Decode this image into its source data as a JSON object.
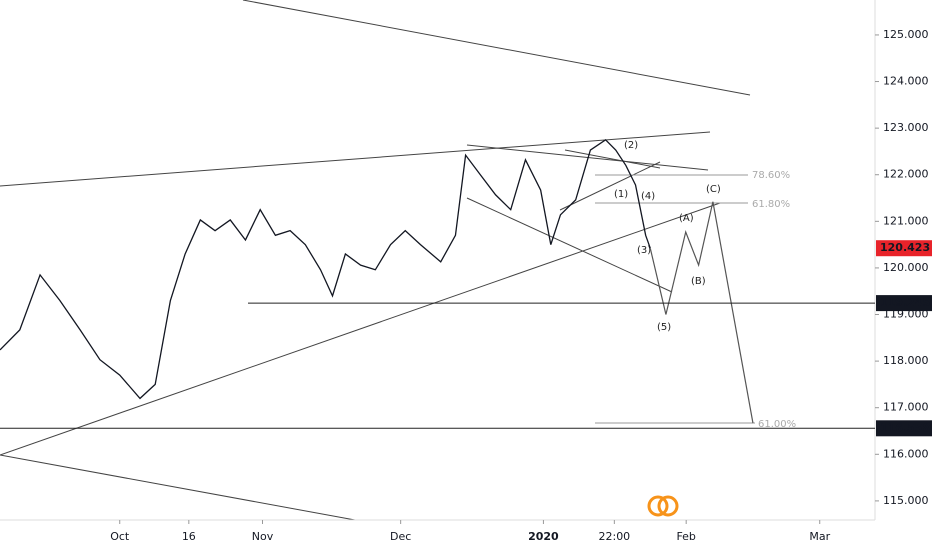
{
  "chart_data": {
    "type": "line",
    "x": [
      -26,
      -21.7,
      -17.3,
      -13,
      -8.6,
      -4.3,
      0,
      4.4,
      7.7,
      11,
      14.2,
      17.5,
      20.7,
      24,
      27.3,
      30.5,
      33.8,
      37,
      40.3,
      43.6,
      46.2,
      49,
      52.3,
      55.5,
      58.8,
      62,
      65.3,
      69.7,
      72.9,
      75.1,
      78.3,
      81.6,
      84.9,
      88.1,
      91.4,
      93.6,
      95.7,
      99,
      102.2,
      105.5,
      107.7,
      109.9,
      112,
      114.2,
      115.2
    ],
    "series": [
      {
        "color": "#131722",
        "values": [
          118.24,
          118.67,
          119.85,
          119.3,
          118.67,
          118.03,
          117.7,
          117.2,
          117.5,
          119.3,
          120.3,
          121.03,
          120.8,
          121.03,
          120.6,
          121.25,
          120.7,
          120.8,
          120.5,
          119.96,
          119.4,
          120.3,
          120.06,
          119.96,
          120.5,
          120.8,
          120.5,
          120.13,
          120.7,
          122.42,
          122.0,
          121.57,
          121.25,
          122.32,
          121.67,
          120.5,
          121.14,
          121.46,
          122.53,
          122.75,
          122.53,
          122.2,
          121.78,
          120.7,
          120.423
        ]
      }
    ],
    "projection": {
      "color": "#555555",
      "x": [
        115.2,
        118.6,
        122.9,
        125.7,
        128.8,
        137.5
      ],
      "values": [
        120.423,
        119.0,
        120.77,
        120.06,
        121.42,
        116.67
      ]
    },
    "xlim": [
      -26,
      164
    ],
    "ylim": [
      114.59,
      125.75
    ],
    "xticks": [
      {
        "value": 0,
        "label": "Oct"
      },
      {
        "value": 15,
        "label": "16"
      },
      {
        "value": 31,
        "label": "Nov"
      },
      {
        "value": 61,
        "label": "Dec"
      },
      {
        "value": 92,
        "label": "2020"
      },
      {
        "value": 107.4,
        "label": "22:00"
      },
      {
        "value": 123,
        "label": "Feb"
      },
      {
        "value": 152,
        "label": "Mar"
      }
    ],
    "yticks": [
      {
        "value": 115,
        "label": "115.000"
      },
      {
        "value": 116,
        "label": "116.000"
      },
      {
        "value": 117,
        "label": "117.000"
      },
      {
        "value": 118,
        "label": "118.000"
      },
      {
        "value": 119,
        "label": "119.000"
      },
      {
        "value": 120,
        "label": "120.000"
      },
      {
        "value": 121,
        "label": "121.000"
      },
      {
        "value": 122,
        "label": "122.000"
      },
      {
        "value": 123,
        "label": "123.000"
      },
      {
        "value": 124,
        "label": "124.000"
      },
      {
        "value": 125,
        "label": "125.000"
      }
    ],
    "price_markers": [
      {
        "value": 120.423,
        "color": "#e8232a"
      },
      {
        "value": 119.245,
        "color": "#131722"
      },
      {
        "value": 116.558,
        "color": "#131722"
      }
    ],
    "wave_labels": [
      "(1)",
      "(2)",
      "(3)",
      "(4)",
      "(5)",
      "(A)",
      "(B)",
      "(C)"
    ],
    "fib_labels": [
      "78.60%",
      "61.80%",
      "61.00%"
    ]
  }
}
